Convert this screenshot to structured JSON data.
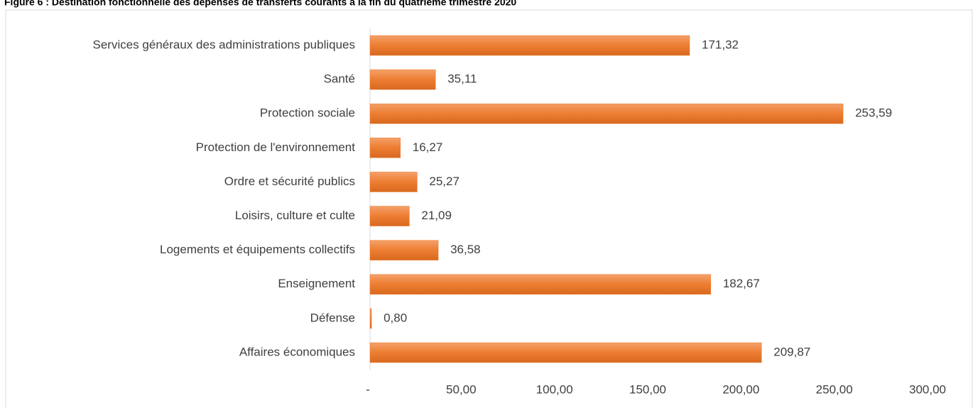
{
  "chart_data": {
    "type": "bar",
    "orientation": "horizontal",
    "title": "Figure 6 : Destination fonctionnelle des dépenses de transferts courants à la fin du quatrième trimestre 2020",
    "categories": [
      "Services généraux des administrations publiques",
      "Santé",
      "Protection sociale",
      "Protection de l'environnement",
      "Ordre et sécurité publics",
      "Loisirs, culture et culte",
      "Logements et équipements collectifs",
      "Enseignement",
      "Défense",
      "Affaires économiques"
    ],
    "values": [
      171.32,
      35.11,
      253.59,
      16.27,
      25.27,
      21.09,
      36.58,
      182.67,
      0.8,
      209.87
    ],
    "value_labels": [
      "171,32",
      "35,11",
      "253,59",
      "16,27",
      "25,27",
      "21,09",
      "36,58",
      "182,67",
      "0,80",
      "209,87"
    ],
    "color": "#ed7d31",
    "xlim": [
      0,
      300
    ],
    "xticks": [
      {
        "value": 0,
        "label": "-"
      },
      {
        "value": 50,
        "label": "50,00"
      },
      {
        "value": 100,
        "label": "100,00"
      },
      {
        "value": 150,
        "label": "150,00"
      },
      {
        "value": 200,
        "label": "200,00"
      },
      {
        "value": 250,
        "label": "250,00"
      },
      {
        "value": 300,
        "label": "300,00"
      }
    ],
    "grid": false
  }
}
